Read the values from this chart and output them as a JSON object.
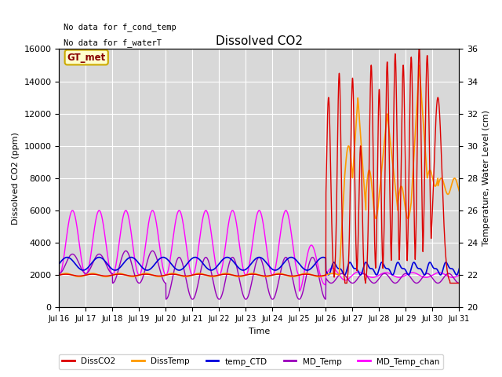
{
  "title": "Dissolved CO2",
  "xlabel": "Time",
  "ylabel_left": "Dissolved CO2 (ppm)",
  "ylabel_right": "Temperature, Water Level (cm)",
  "annotation1": "No data for f_cond_temp",
  "annotation2": "No data for f_waterT",
  "gt_met_label": "GT_met",
  "ylim_left": [
    0,
    16000
  ],
  "ylim_right": [
    20,
    36
  ],
  "background_color": "#d8d8d8",
  "colors": {
    "DissCO2": "#dd0000",
    "DissTemp": "#ff9900",
    "temp_CTD": "#0000dd",
    "MD_Temp": "#9900bb",
    "MD_Temp_chan": "#ff00ff"
  },
  "x_tick_labels": [
    "Jul 16",
    "Jul 17",
    "Jul 18",
    "Jul 19",
    "Jul 20",
    "Jul 21",
    "Jul 22",
    "Jul 23",
    "Jul 24",
    "Jul 25",
    "Jul 26",
    "Jul 27",
    "Jul 28",
    "Jul 29",
    "Jul 30",
    "Jul 31"
  ],
  "x_tick_positions": [
    0,
    1,
    2,
    3,
    4,
    5,
    6,
    7,
    8,
    9,
    10,
    11,
    12,
    13,
    14,
    15
  ],
  "figsize": [
    6.4,
    4.8
  ],
  "dpi": 100
}
